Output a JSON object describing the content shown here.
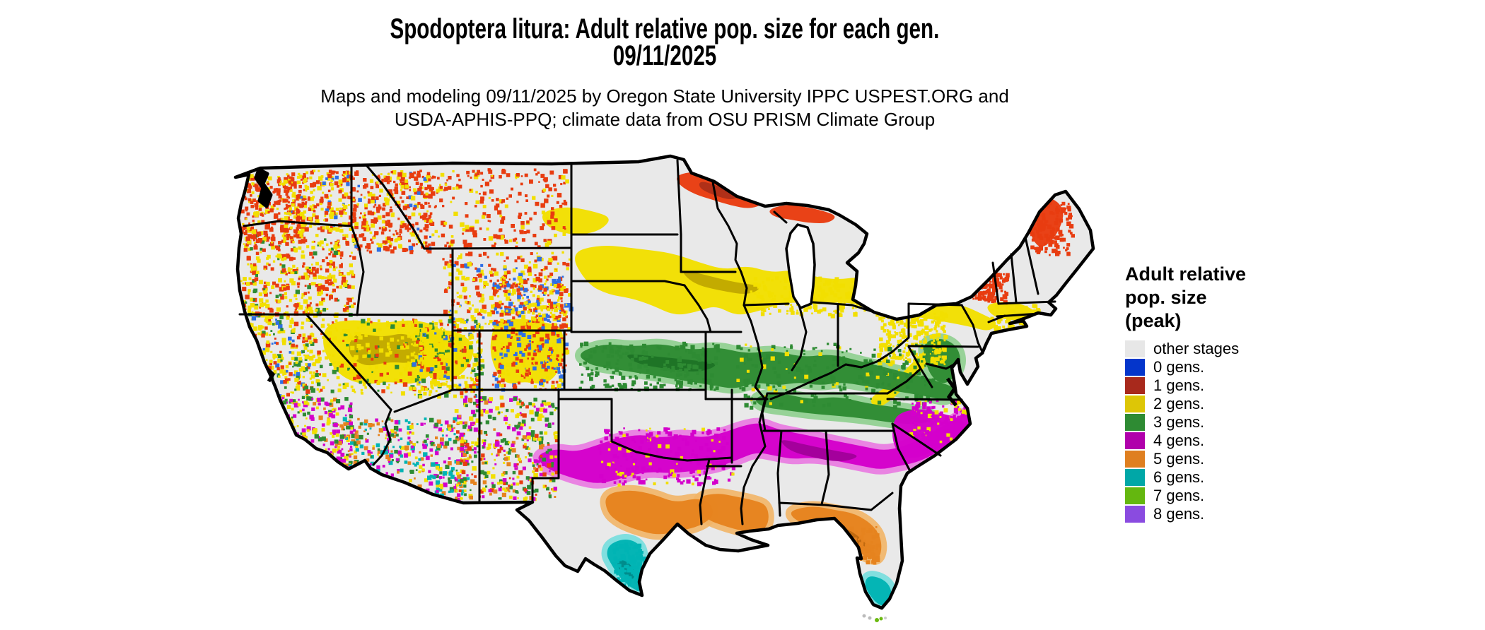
{
  "header": {
    "title_line1": "Spodoptera litura: Adult relative pop. size for each gen.",
    "title_line2": "09/11/2025",
    "subtitle_line1": "Maps and modeling 09/11/2025 by Oregon State University IPPC USPEST.ORG and",
    "subtitle_line2": "USDA-APHIS-PPQ; climate data from OSU PRISM Climate Group"
  },
  "legend": {
    "title_lines": [
      "Adult relative",
      "pop. size",
      "(peak)"
    ],
    "items": [
      {
        "label": "other stages",
        "color": "#e7e7e7"
      },
      {
        "label": "0 gens.",
        "color": "#0435cb"
      },
      {
        "label": "1 gens.",
        "color": "#a8291c"
      },
      {
        "label": "2 gens.",
        "color": "#ddc606"
      },
      {
        "label": "3 gens.",
        "color": "#2e8b33"
      },
      {
        "label": "4 gens.",
        "color": "#b000ab"
      },
      {
        "label": "5 gens.",
        "color": "#df7f20"
      },
      {
        "label": "6 gens.",
        "color": "#00a7a7"
      },
      {
        "label": "7 gens.",
        "color": "#64b70f"
      },
      {
        "label": "8 gens.",
        "color": "#8a4be0"
      }
    ]
  },
  "map": {
    "land_color": "#e9e9e9",
    "border_color": "#000000",
    "water_color": "#ffffff",
    "class_colors": {
      "g0": {
        "main": "#2f6fe4"
      },
      "g1": {
        "main": "#e83c10",
        "core": "#b03018"
      },
      "g2": {
        "main": "#f2df00",
        "core": "#c3ab00"
      },
      "g3": {
        "main": "#2e8b33",
        "fringe": "#8fd08f",
        "core": "#1e7426"
      },
      "g4": {
        "main": "#d400cb",
        "fringe": "#ea7ae2",
        "core": "#a4009c"
      },
      "g5": {
        "main": "#e6831e",
        "fringe": "#f2b568",
        "core": "#c06a10"
      },
      "g6": {
        "main": "#00b4b4",
        "fringe": "#76dede",
        "core": "#008c8c"
      },
      "g7": {
        "main": "#6ab910"
      },
      "g8": {
        "main": "#8a4be0"
      }
    }
  }
}
